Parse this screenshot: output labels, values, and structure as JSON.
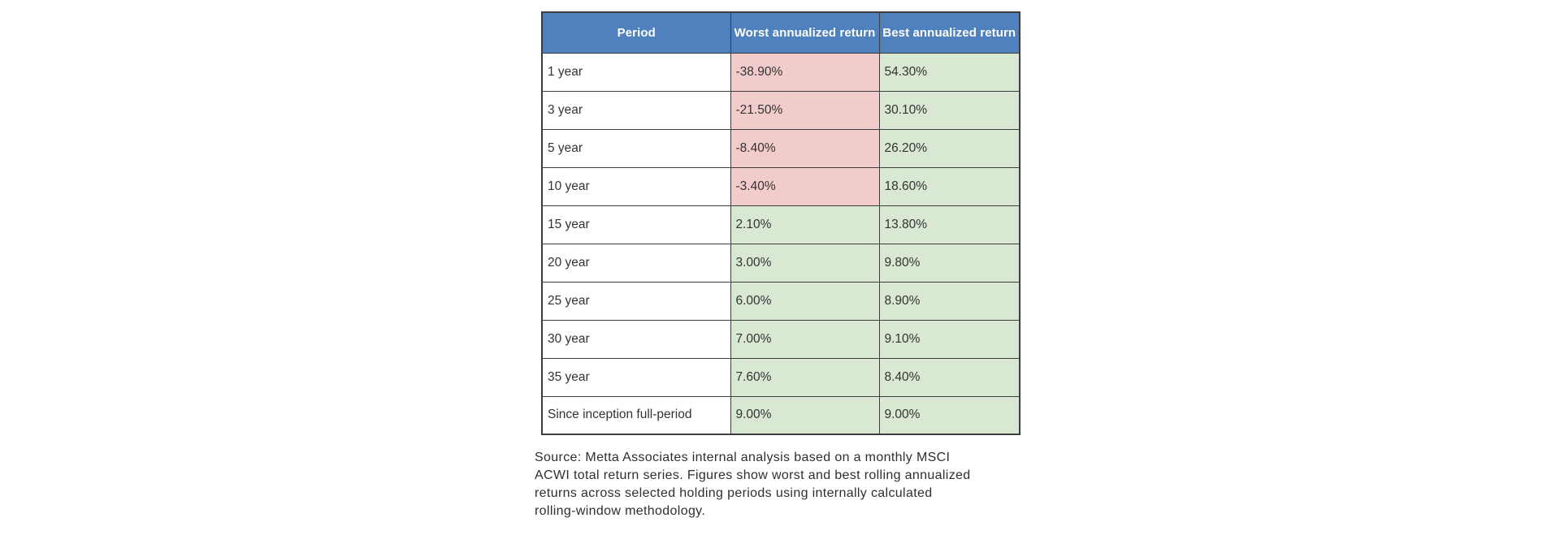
{
  "colors": {
    "header_bg": "#4E81BD",
    "header_text": "#FFFFFF",
    "negative_bg": "#F2CBCB",
    "positive_bg": "#D8E8D2",
    "row_bg": "#FFFFFF",
    "border": "#3D3D3D",
    "cell_text": "#333333",
    "caption_text": "#2F2F2F",
    "page_bg": "#FFFFFF"
  },
  "chart_data": {
    "type": "table",
    "columns": [
      "Period",
      "Worst annualized return",
      "Best annualized return"
    ],
    "rows": [
      [
        "1 year",
        "-38.90%",
        "54.30%"
      ],
      [
        "3 year",
        "-21.50%",
        "30.10%"
      ],
      [
        "5 year",
        "-8.40%",
        "26.20%"
      ],
      [
        "10 year",
        "-3.40%",
        "18.60%"
      ],
      [
        "15 year",
        "2.10%",
        "13.80%"
      ],
      [
        "20 year",
        "3.00%",
        "9.80%"
      ],
      [
        "25 year",
        "6.00%",
        "8.90%"
      ],
      [
        "30 year",
        "7.00%",
        "9.10%"
      ],
      [
        "35 year",
        "7.60%",
        "8.40%"
      ],
      [
        "Since inception full-period",
        "9.00%",
        "9.00%"
      ]
    ],
    "layout_hints": {
      "header_style": "blue fill, white bold centered text",
      "cell_shading": "negative values pink, non-negative values green, period column white"
    }
  },
  "caption": {
    "lines": [
      "Source: Metta Associates internal analysis based on a monthly MSCI",
      "ACWI total return series. Figures show worst and best rolling annualized",
      "returns across selected holding periods using internally calculated",
      "rolling-window methodology."
    ],
    "full_text": "Source: Metta Associates internal analysis based on a monthly MSCI ACWI total return series. Figures show worst and best rolling annualized returns across selected holding periods using internally calculated rolling-window methodology."
  }
}
